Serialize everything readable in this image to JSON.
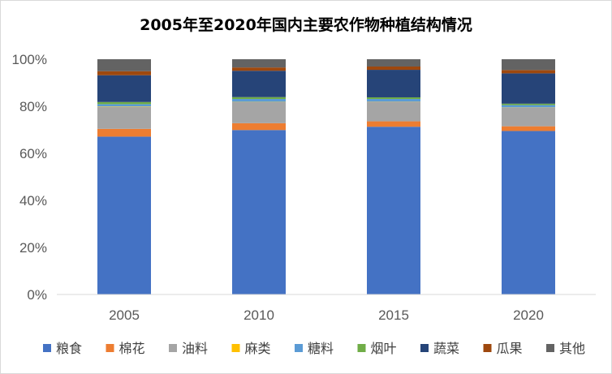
{
  "chart_data": {
    "type": "bar",
    "stacked": true,
    "percent": true,
    "title": "2005年至2020年国内主要农作物种植结构情况",
    "categories": [
      "2005",
      "2010",
      "2015",
      "2020"
    ],
    "series": [
      {
        "name": "粮食",
        "color": "#4472C4",
        "values": [
          67.1,
          69.9,
          71.3,
          69.5
        ]
      },
      {
        "name": "棉花",
        "color": "#ED7D31",
        "values": [
          3.3,
          2.9,
          2.3,
          2.0
        ]
      },
      {
        "name": "油料",
        "color": "#A5A5A5",
        "values": [
          9.3,
          9.0,
          8.3,
          7.9
        ]
      },
      {
        "name": "麻类",
        "color": "#FFC000",
        "values": [
          0.2,
          0.1,
          0.1,
          0.1
        ]
      },
      {
        "name": "糖料",
        "color": "#5B9BD5",
        "values": [
          1.0,
          1.2,
          1.1,
          1.0
        ]
      },
      {
        "name": "烟叶",
        "color": "#70AD47",
        "values": [
          0.9,
          0.8,
          0.7,
          0.6
        ]
      },
      {
        "name": "蔬菜",
        "color": "#264478",
        "values": [
          11.4,
          11.2,
          11.7,
          12.9
        ]
      },
      {
        "name": "瓜果",
        "color": "#9E480E",
        "values": [
          1.7,
          1.4,
          1.4,
          1.4
        ]
      },
      {
        "name": "其他",
        "color": "#636363",
        "values": [
          5.1,
          3.5,
          3.1,
          4.6
        ]
      }
    ],
    "y_ticks": [
      "0%",
      "20%",
      "40%",
      "60%",
      "80%",
      "100%"
    ],
    "ylim": [
      0,
      100
    ],
    "grid": false,
    "legend_position": "bottom"
  }
}
